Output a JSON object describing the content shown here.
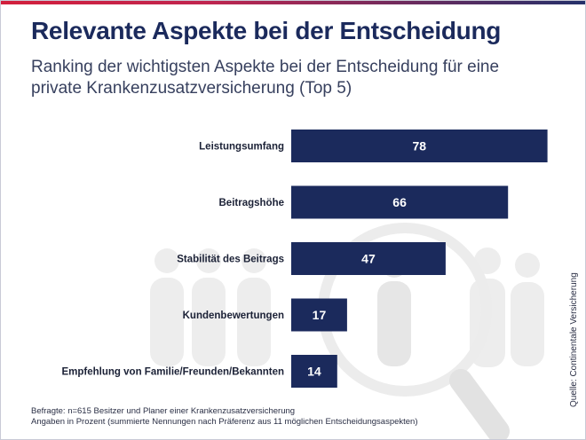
{
  "header": {
    "title": "Relevante Aspekte bei der Entscheidung",
    "subtitle": "Ranking der wichtigsten Aspekte bei der Entscheidung für eine private Krankenzusatzversicherung (Top 5)"
  },
  "chart_data": {
    "type": "bar",
    "orientation": "horizontal",
    "categories": [
      "Leistungsumfang",
      "Beitragshöhe",
      "Stabilität des Beitrags",
      "Kundenbewertungen",
      "Empfehlung von Familie/Freunden/Bekannten"
    ],
    "values": [
      78,
      66,
      47,
      17,
      14
    ],
    "xlim": [
      0,
      100
    ],
    "grid": false,
    "bar_color": "#1b2a5c",
    "label_color": "#ffffff"
  },
  "footer": {
    "footnote_line1": "Befragte: n=615 Besitzer und Planer einer Krankenzusatzversicherung",
    "footnote_line2": "Angaben in Prozent (summierte Nennungen nach Präferenz aus 11 möglichen Entscheidungsaspekten)",
    "source": "Quelle: Continentale Versicherung"
  },
  "decoration": {
    "background_motif": "people-silhouettes-and-magnifier-icon"
  }
}
